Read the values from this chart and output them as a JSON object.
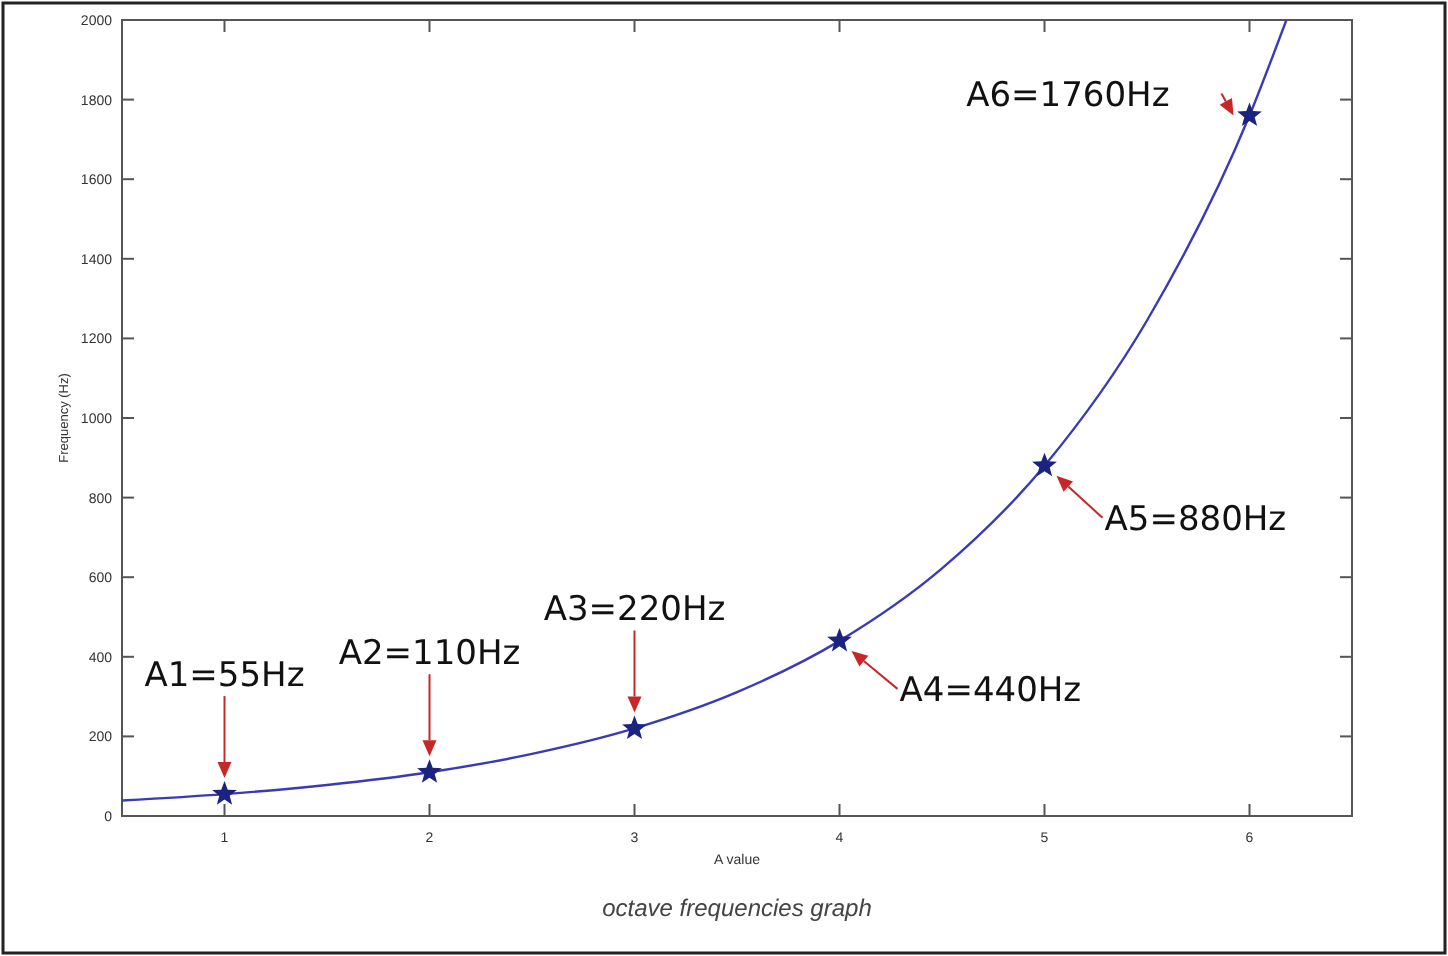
{
  "chart_data": {
    "type": "line",
    "title": "octave frequencies graph",
    "xlabel": "A value",
    "ylabel": "Frequency (Hz)",
    "xlim": [
      0.5,
      6.5
    ],
    "xticks": [
      1,
      2,
      3,
      4,
      5,
      6
    ],
    "ylim": [
      0,
      2000
    ],
    "yticks": [
      0,
      200,
      400,
      600,
      800,
      1000,
      1200,
      1400,
      1600,
      1800,
      2000
    ],
    "grid": false,
    "series": [
      {
        "type": "line",
        "color": "#3a3ab8",
        "marker": "none",
        "x": [
          0.5,
          1,
          1.5,
          2,
          2.5,
          3,
          3.5,
          4,
          4.5,
          5,
          5.5,
          6,
          6.18
        ],
        "values": [
          39,
          55,
          78,
          110,
          156,
          220,
          311,
          440,
          622,
          880,
          1245,
          1760,
          2000
        ]
      },
      {
        "type": "scatter",
        "color": "#1a237e",
        "marker": "star",
        "x": [
          1,
          2,
          3,
          4,
          5,
          6
        ],
        "values": [
          55,
          110,
          220,
          440,
          880,
          1760
        ]
      }
    ],
    "annotations": [
      {
        "text": "A1=55Hz",
        "x": 1,
        "y": 55
      },
      {
        "text": "A2=110Hz",
        "x": 2,
        "y": 110
      },
      {
        "text": "A3=220Hz",
        "x": 3,
        "y": 220
      },
      {
        "text": "A4=440Hz",
        "x": 4,
        "y": 440
      },
      {
        "text": "A5=880Hz",
        "x": 5,
        "y": 880
      },
      {
        "text": "A6=1760Hz",
        "x": 6,
        "y": 1760
      }
    ]
  }
}
